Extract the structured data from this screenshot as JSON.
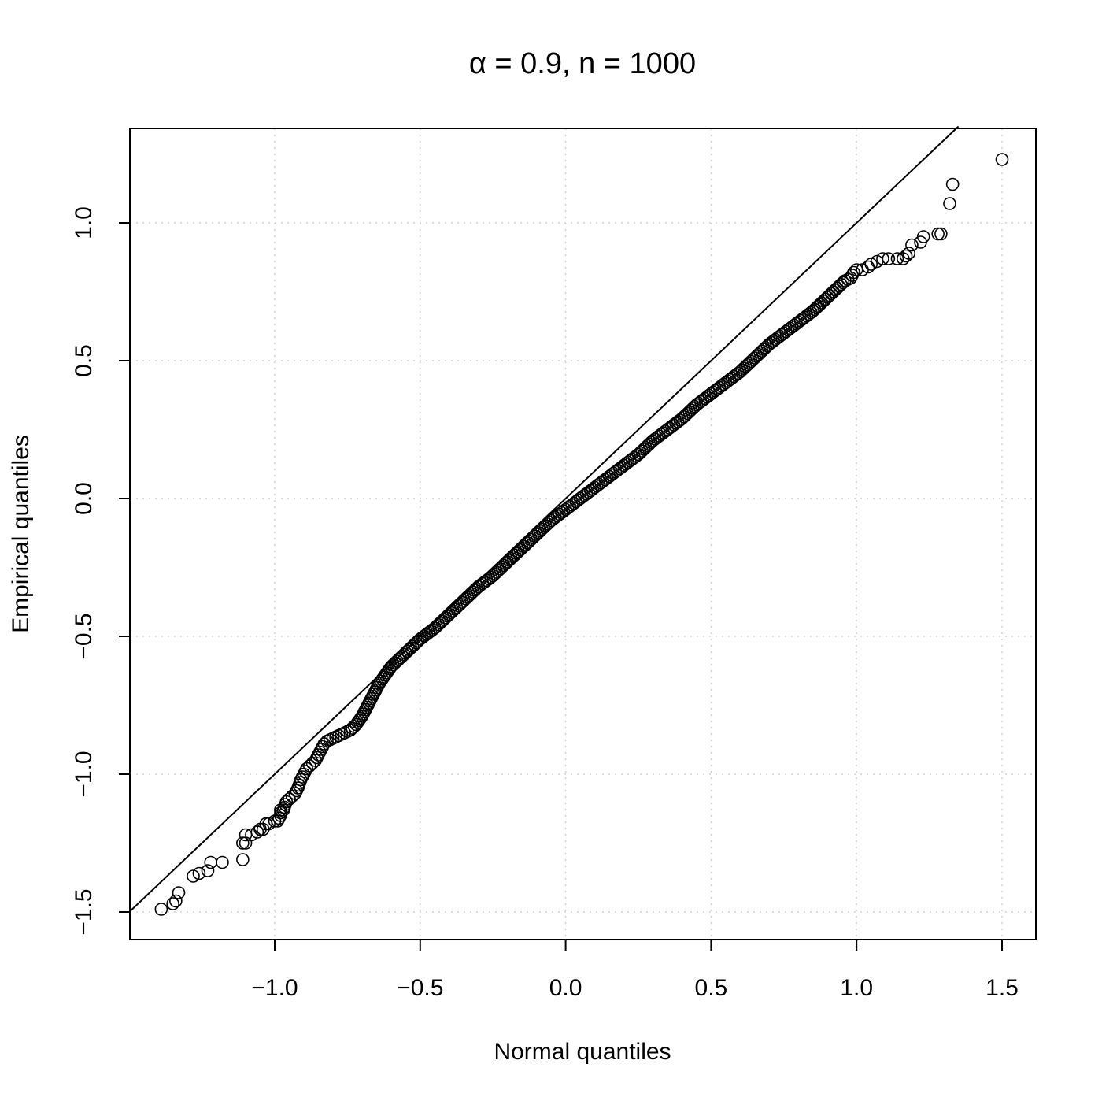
{
  "chart_data": {
    "type": "scatter",
    "title": "α = 0.9, n = 1000",
    "xlabel": "Normal quantiles",
    "ylabel": "Empirical quantiles",
    "xlim": [
      -1.5,
      1.6
    ],
    "ylim": [
      -1.6,
      1.35
    ],
    "x_ticks": [
      -1.0,
      -0.5,
      0.0,
      0.5,
      1.0,
      1.5
    ],
    "x_tick_labels": [
      "−1.0",
      "−0.5",
      "0.0",
      "0.5",
      "1.0",
      "1.5"
    ],
    "y_ticks": [
      -1.5,
      -1.0,
      -0.5,
      0.0,
      0.5,
      1.0
    ],
    "y_tick_labels": [
      "−1.5",
      "−1.0",
      "−0.5",
      "0.0",
      "0.5",
      "1.0"
    ],
    "grid": true,
    "reference_line": {
      "intercept": 0,
      "slope": 1
    },
    "points": [
      [
        -1.39,
        -1.49
      ],
      [
        -1.35,
        -1.47
      ],
      [
        -1.34,
        -1.46
      ],
      [
        -1.33,
        -1.43
      ],
      [
        -1.28,
        -1.37
      ],
      [
        -1.26,
        -1.36
      ],
      [
        -1.23,
        -1.35
      ],
      [
        -1.22,
        -1.32
      ],
      [
        -1.18,
        -1.32
      ],
      [
        -1.11,
        -1.31
      ],
      [
        -1.11,
        -1.25
      ],
      [
        -1.1,
        -1.25
      ],
      [
        -1.1,
        -1.22
      ],
      [
        -1.08,
        -1.22
      ],
      [
        -1.06,
        -1.21
      ],
      [
        -1.05,
        -1.2
      ],
      [
        -1.04,
        -1.2
      ],
      [
        -1.03,
        -1.18
      ],
      [
        -1.02,
        -1.18
      ],
      [
        -1.0,
        -1.17
      ],
      [
        -0.99,
        -1.17
      ],
      [
        -0.98,
        -1.15
      ],
      [
        -0.98,
        -1.13
      ],
      [
        -0.97,
        -1.13
      ],
      [
        -0.96,
        -1.1
      ],
      [
        -0.95,
        -1.09
      ],
      [
        -0.94,
        -1.08
      ],
      [
        -0.93,
        -1.07
      ],
      [
        -0.92,
        -1.05
      ],
      [
        -0.91,
        -1.02
      ],
      [
        -0.9,
        -1.0
      ],
      [
        -0.89,
        -0.98
      ],
      [
        -0.88,
        -0.97
      ],
      [
        -0.87,
        -0.96
      ],
      [
        -0.86,
        -0.95
      ],
      [
        -0.85,
        -0.93
      ],
      [
        -0.84,
        -0.91
      ],
      [
        -0.83,
        -0.89
      ],
      [
        -0.82,
        -0.88
      ],
      [
        -0.8,
        -0.87
      ],
      [
        -0.78,
        -0.86
      ],
      [
        -0.76,
        -0.85
      ],
      [
        -0.74,
        -0.84
      ],
      [
        -0.72,
        -0.82
      ],
      [
        -0.7,
        -0.79
      ],
      [
        -0.68,
        -0.75
      ],
      [
        -0.66,
        -0.71
      ],
      [
        -0.64,
        -0.67
      ],
      [
        -0.62,
        -0.64
      ],
      [
        -0.6,
        -0.61
      ],
      [
        -0.58,
        -0.59
      ],
      [
        -0.55,
        -0.56
      ],
      [
        -0.52,
        -0.53
      ],
      [
        -0.5,
        -0.51
      ],
      [
        -0.45,
        -0.47
      ],
      [
        -0.4,
        -0.42
      ],
      [
        -0.35,
        -0.37
      ],
      [
        -0.3,
        -0.32
      ],
      [
        -0.25,
        -0.28
      ],
      [
        -0.2,
        -0.23
      ],
      [
        -0.15,
        -0.18
      ],
      [
        -0.1,
        -0.13
      ],
      [
        -0.05,
        -0.08
      ],
      [
        0.0,
        -0.04
      ],
      [
        0.05,
        0.0
      ],
      [
        0.1,
        0.04
      ],
      [
        0.15,
        0.08
      ],
      [
        0.2,
        0.12
      ],
      [
        0.25,
        0.16
      ],
      [
        0.3,
        0.21
      ],
      [
        0.35,
        0.25
      ],
      [
        0.4,
        0.29
      ],
      [
        0.45,
        0.34
      ],
      [
        0.5,
        0.38
      ],
      [
        0.55,
        0.42
      ],
      [
        0.6,
        0.46
      ],
      [
        0.65,
        0.51
      ],
      [
        0.7,
        0.56
      ],
      [
        0.75,
        0.6
      ],
      [
        0.8,
        0.64
      ],
      [
        0.85,
        0.68
      ],
      [
        0.88,
        0.71
      ],
      [
        0.9,
        0.73
      ],
      [
        0.92,
        0.75
      ],
      [
        0.94,
        0.77
      ],
      [
        0.96,
        0.79
      ],
      [
        0.98,
        0.8
      ],
      [
        0.99,
        0.82
      ],
      [
        1.0,
        0.83
      ],
      [
        1.02,
        0.83
      ],
      [
        1.04,
        0.84
      ],
      [
        1.05,
        0.85
      ],
      [
        1.07,
        0.86
      ],
      [
        1.09,
        0.87
      ],
      [
        1.11,
        0.87
      ],
      [
        1.14,
        0.87
      ],
      [
        1.16,
        0.87
      ],
      [
        1.17,
        0.88
      ],
      [
        1.18,
        0.89
      ],
      [
        1.19,
        0.92
      ],
      [
        1.22,
        0.93
      ],
      [
        1.23,
        0.95
      ],
      [
        1.28,
        0.96
      ],
      [
        1.29,
        0.96
      ],
      [
        1.32,
        1.07
      ],
      [
        1.33,
        1.14
      ],
      [
        1.5,
        1.23
      ]
    ]
  }
}
